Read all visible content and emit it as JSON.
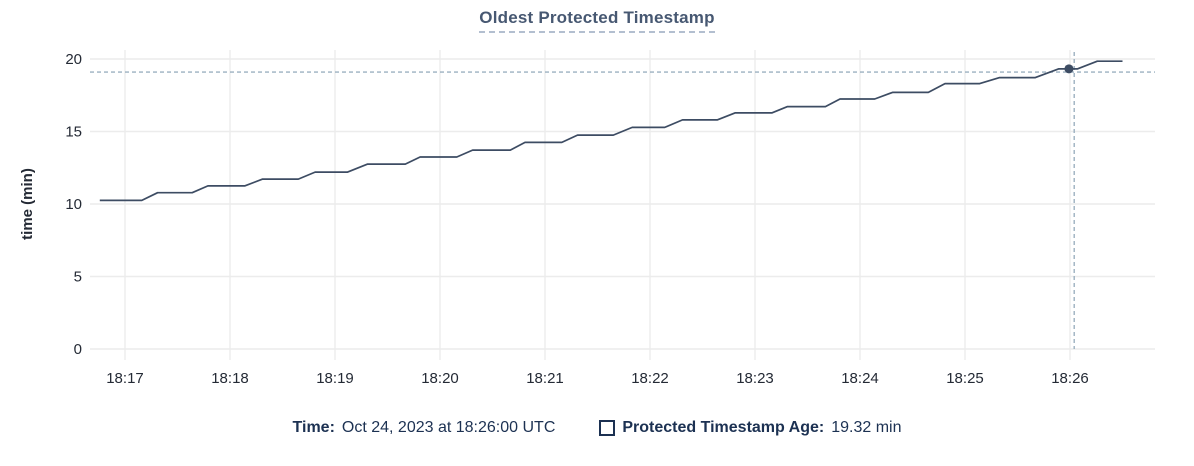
{
  "title": "Oldest Protected Timestamp",
  "chart_data": {
    "type": "line",
    "title": "Oldest Protected Timestamp",
    "xlabel": "",
    "ylabel": "time (min)",
    "ylim": [
      0,
      20
    ],
    "y_ticks": [
      0,
      5,
      10,
      15,
      20
    ],
    "x_ticks": [
      "18:17",
      "18:18",
      "18:19",
      "18:20",
      "18:21",
      "18:22",
      "18:23",
      "18:24",
      "18:25",
      "18:26"
    ],
    "x_range_minutes_from_1817": [
      -0.333,
      9.81
    ],
    "grid": true,
    "legend_position": "bottom",
    "series": [
      {
        "name": "Protected Timestamp Age",
        "units": "min",
        "points_t_min_from_1817_vs_value": [
          [
            -0.24,
            10.25
          ],
          [
            0.16,
            10.25
          ],
          [
            0.31,
            10.78
          ],
          [
            0.64,
            10.78
          ],
          [
            0.79,
            11.25
          ],
          [
            1.14,
            11.25
          ],
          [
            1.31,
            11.72
          ],
          [
            1.65,
            11.72
          ],
          [
            1.81,
            12.2
          ],
          [
            2.12,
            12.2
          ],
          [
            2.31,
            12.75
          ],
          [
            2.67,
            12.75
          ],
          [
            2.81,
            13.24
          ],
          [
            3.16,
            13.24
          ],
          [
            3.31,
            13.72
          ],
          [
            3.67,
            13.72
          ],
          [
            3.81,
            14.25
          ],
          [
            4.16,
            14.25
          ],
          [
            4.31,
            14.75
          ],
          [
            4.65,
            14.75
          ],
          [
            4.83,
            15.28
          ],
          [
            5.14,
            15.28
          ],
          [
            5.31,
            15.8
          ],
          [
            5.64,
            15.8
          ],
          [
            5.81,
            16.28
          ],
          [
            6.16,
            16.28
          ],
          [
            6.31,
            16.72
          ],
          [
            6.67,
            16.72
          ],
          [
            6.81,
            17.24
          ],
          [
            7.14,
            17.24
          ],
          [
            7.31,
            17.7
          ],
          [
            7.65,
            17.7
          ],
          [
            7.81,
            18.3
          ],
          [
            8.14,
            18.3
          ],
          [
            8.33,
            18.72
          ],
          [
            8.67,
            18.72
          ],
          [
            8.89,
            19.32
          ],
          [
            9.07,
            19.32
          ],
          [
            9.26,
            19.85
          ],
          [
            9.5,
            19.85
          ]
        ]
      }
    ],
    "crosshair": {
      "hover_time": "18:26:00",
      "hover_time_minutes_from_1817": 9.04,
      "hover_value": 19.1,
      "dot_time_minutes_from_1817": 8.99,
      "dot_value": 19.32
    }
  },
  "footer": {
    "time_label": "Time:",
    "time_value": "Oct 24, 2023 at 18:26:00 UTC",
    "series_label": "Protected Timestamp Age:",
    "series_value": "19.32 min"
  },
  "colors": {
    "line": "#3d4c63",
    "dot": "#3d4c63",
    "title": "#475872",
    "title_underline": "#b3bfd0",
    "grid": "#ececec",
    "tick_text": "#242a35",
    "crosshair": "#9cb0c0",
    "legend_text": "#1c3152",
    "background": "#ffffff"
  }
}
